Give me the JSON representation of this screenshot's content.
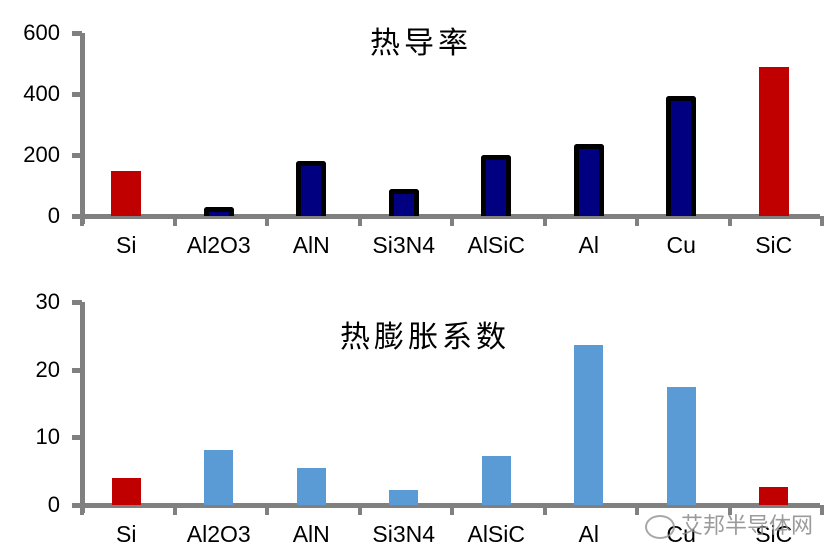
{
  "chart_data": [
    {
      "type": "bar",
      "title": "热导率",
      "categories": [
        "Si",
        "Al2O3",
        "AlN",
        "Si3N4",
        "AlSiC",
        "Al",
        "Cu",
        "SiC"
      ],
      "values": [
        148,
        30,
        180,
        90,
        200,
        235,
        395,
        490
      ],
      "colors": [
        "#C00000",
        "#000080",
        "#000080",
        "#000080",
        "#000080",
        "#000080",
        "#000080",
        "#C00000"
      ],
      "outlined": [
        false,
        true,
        true,
        true,
        true,
        true,
        true,
        false
      ],
      "yticks": [
        0,
        200,
        400,
        600
      ],
      "ylim": [
        0,
        600
      ],
      "xlabel": "",
      "ylabel": "",
      "grid": false,
      "legend": "none"
    },
    {
      "type": "bar",
      "title": "热膨胀系数",
      "categories": [
        "Si",
        "Al2O3",
        "AlN",
        "Si3N4",
        "AlSiC",
        "Al",
        "Cu",
        "SiC"
      ],
      "values": [
        4.0,
        8.1,
        5.5,
        2.2,
        7.3,
        23.6,
        17.5,
        2.7
      ],
      "colors": [
        "#C00000",
        "#5B9BD5",
        "#5B9BD5",
        "#5B9BD5",
        "#5B9BD5",
        "#5B9BD5",
        "#5B9BD5",
        "#C00000"
      ],
      "yticks": [
        0,
        10,
        20,
        30
      ],
      "ylim": [
        0,
        30
      ],
      "xlabel": "",
      "ylabel": "",
      "grid": false,
      "legend": "none"
    }
  ],
  "watermark": "艾邦半导体网"
}
